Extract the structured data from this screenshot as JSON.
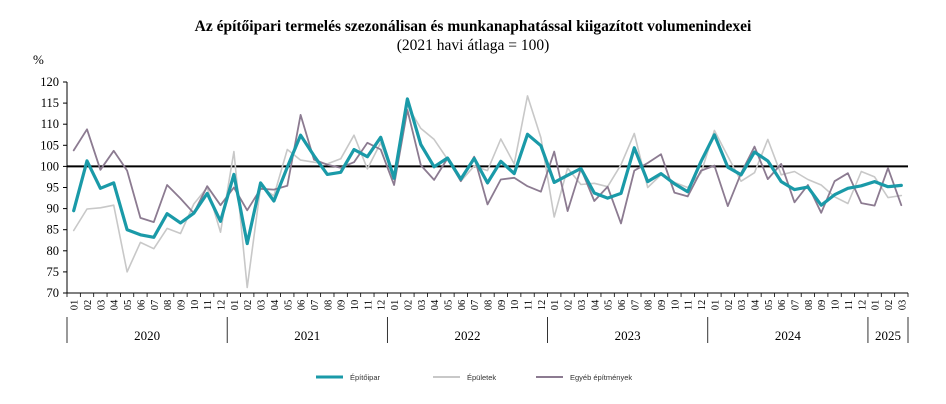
{
  "chart_data": {
    "type": "line",
    "title": "Az építőipari  termelés szezonálisan és munkanaphatással kiigazított volumenindexei",
    "subtitle": "(2021 havi átlaga = 100)",
    "ylabel": "%",
    "ylim": [
      70,
      120
    ],
    "yticks": [
      70,
      75,
      80,
      85,
      90,
      95,
      100,
      105,
      110,
      115,
      120
    ],
    "reference_line": 100,
    "grid": false,
    "legend_position": "bottom",
    "months": [
      "01",
      "02",
      "03",
      "04",
      "05",
      "06",
      "07",
      "08",
      "09",
      "10",
      "11",
      "12",
      "01",
      "02",
      "03",
      "04",
      "05",
      "06",
      "07",
      "08",
      "09",
      "10",
      "11",
      "12",
      "01",
      "02",
      "03",
      "04",
      "05",
      "06",
      "07",
      "08",
      "09",
      "10",
      "11",
      "12",
      "01",
      "02",
      "03",
      "04",
      "05",
      "06",
      "07",
      "08",
      "09",
      "10",
      "11",
      "12",
      "01",
      "02",
      "03",
      "04",
      "05",
      "06",
      "07",
      "08",
      "09",
      "10",
      "11",
      "12",
      "01",
      "02",
      "03"
    ],
    "years": [
      {
        "label": "2020",
        "count": 12
      },
      {
        "label": "2021",
        "count": 12
      },
      {
        "label": "2022",
        "count": 12
      },
      {
        "label": "2023",
        "count": 12
      },
      {
        "label": "2024",
        "count": 12
      },
      {
        "label": "2025",
        "count": 3
      }
    ],
    "series": [
      {
        "name": "Építőipar",
        "color": "#1a9aa8",
        "values": [
          89.5,
          101.3,
          94.8,
          96.1,
          85.0,
          83.8,
          83.2,
          88.8,
          86.6,
          88.9,
          93.6,
          87.0,
          98.1,
          81.7,
          96.1,
          91.8,
          99.8,
          107.4,
          102.5,
          98.1,
          98.6,
          104.0,
          102.3,
          106.9,
          97.2,
          116.0,
          105.2,
          99.9,
          102.0,
          97.0,
          101.9,
          96.1,
          101.2,
          98.3,
          107.6,
          104.9,
          96.2,
          97.9,
          99.5,
          93.7,
          92.5,
          93.6,
          104.4,
          96.4,
          98.3,
          95.9,
          94.0,
          101.2,
          107.5,
          99.8,
          98.0,
          103.4,
          101.3,
          96.4,
          94.5,
          95.1,
          90.8,
          93.3,
          94.8,
          95.4,
          96.4,
          95.2,
          95.5
        ]
      },
      {
        "name": "Épületek",
        "color": "#c8c8c8",
        "values": [
          84.8,
          89.9,
          90.2,
          90.8,
          75.0,
          82.0,
          80.5,
          85.3,
          84.1,
          91.1,
          95.0,
          84.4,
          103.5,
          71.3,
          95.2,
          93.0,
          104.0,
          101.5,
          101.0,
          100.6,
          101.8,
          107.4,
          99.4,
          105.6,
          97.0,
          114.4,
          109.0,
          106.4,
          101.7,
          96.5,
          100.1,
          99.0,
          106.5,
          100.6,
          116.7,
          106.8,
          88.0,
          99.6,
          95.7,
          96.0,
          95.2,
          100.4,
          107.8,
          95.0,
          98.0,
          96.2,
          95.0,
          98.5,
          108.5,
          102.4,
          96.5,
          98.5,
          106.4,
          98.0,
          98.8,
          96.9,
          95.6,
          92.8,
          91.2,
          98.8,
          97.5,
          92.6,
          93.1
        ]
      },
      {
        "name": "Egyéb építmények",
        "color": "#8c7b91",
        "values": [
          103.8,
          108.8,
          99.2,
          103.7,
          99.0,
          87.8,
          86.8,
          95.6,
          92.4,
          88.9,
          95.3,
          90.8,
          95.0,
          89.6,
          94.7,
          94.5,
          95.4,
          112.2,
          101.6,
          100.4,
          99.7,
          101.0,
          105.6,
          104.0,
          95.6,
          113.4,
          100.3,
          96.8,
          101.9,
          96.5,
          102.3,
          91.0,
          96.9,
          97.3,
          95.3,
          94.0,
          103.5,
          89.4,
          99.5,
          91.8,
          95.2,
          86.5,
          99.0,
          100.8,
          102.9,
          93.8,
          92.9,
          99.0,
          100.2,
          90.6,
          98.4,
          104.7,
          97.0,
          100.6,
          91.5,
          95.6,
          89.0,
          96.5,
          98.4,
          91.3,
          90.7,
          99.6,
          90.8
        ]
      }
    ]
  }
}
